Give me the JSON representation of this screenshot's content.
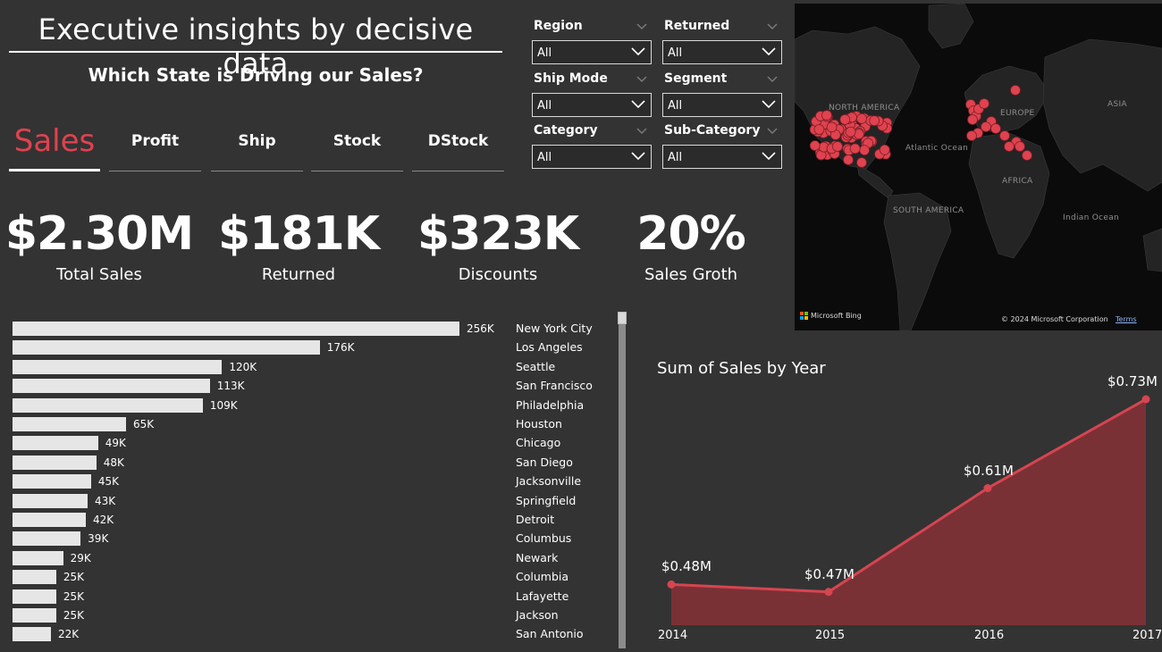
{
  "header": {
    "title": "Executive insights by decisive data",
    "subtitle": "Which State is Driving our Sales?"
  },
  "tabs": [
    {
      "label": "Sales",
      "active": true
    },
    {
      "label": "Profit",
      "active": false
    },
    {
      "label": "Ship",
      "active": false
    },
    {
      "label": "Stock",
      "active": false
    },
    {
      "label": "DStock",
      "active": false
    }
  ],
  "slicers": [
    {
      "label": "Region",
      "value": "All"
    },
    {
      "label": "Returned",
      "value": "All"
    },
    {
      "label": "Ship Mode",
      "value": "All"
    },
    {
      "label": "Segment",
      "value": "All"
    },
    {
      "label": "Category",
      "value": "All"
    },
    {
      "label": "Sub-Category",
      "value": "All"
    }
  ],
  "map": {
    "labels": [
      "NORTH AMERICA",
      "EUROPE",
      "ASIA",
      "Atlantic Ocean",
      "AFRICA",
      "SOUTH AMERICA",
      "Indian Ocean"
    ],
    "brand": "Microsoft Bing",
    "copyright": "© 2024 Microsoft Corporation",
    "terms": "Terms",
    "dot_color": "#e0424f"
  },
  "kpis": [
    {
      "value": "$2.30M",
      "label": "Total Sales"
    },
    {
      "value": "$181K",
      "label": "Returned"
    },
    {
      "value": "$323K",
      "label": "Discounts"
    },
    {
      "value": "20%",
      "label": "Sales Groth"
    }
  ],
  "city_bars": {
    "cities": [
      "New York City",
      "Los Angeles",
      "Seattle",
      "San Francisco",
      "Philadelphia",
      "Houston",
      "Chicago",
      "San Diego",
      "Jacksonville",
      "Springfield",
      "Detroit",
      "Columbus",
      "Newark",
      "Columbia",
      "Lafayette",
      "Jackson",
      "San Antonio"
    ],
    "values": [
      256,
      176,
      120,
      113,
      109,
      65,
      49,
      48,
      45,
      43,
      42,
      39,
      29,
      25,
      25,
      25,
      22
    ],
    "labels": [
      "256K",
      "176K",
      "120K",
      "113K",
      "109K",
      "65K",
      "49K",
      "48K",
      "45K",
      "43K",
      "42K",
      "39K",
      "29K",
      "25K",
      "25K",
      "25K",
      "22K"
    ],
    "bar_color": "#e6e6e6"
  },
  "chart_data": {
    "type": "area",
    "title": "Sum of Sales by Year",
    "categories": [
      "2014",
      "2015",
      "2016",
      "2017"
    ],
    "values": [
      0.48,
      0.47,
      0.61,
      0.73
    ],
    "labels": [
      "$0.48M",
      "$0.47M",
      "$0.61M",
      "$0.73M"
    ],
    "unit": "$M",
    "line_color": "#d64550",
    "fill_color": "#7a3136",
    "ylim": [
      0.425,
      0.73
    ],
    "grid": false
  }
}
